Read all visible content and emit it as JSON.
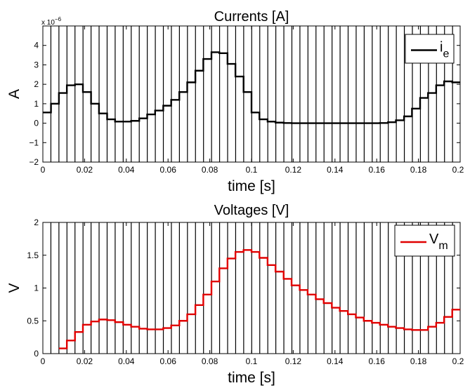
{
  "chart_data": [
    {
      "type": "line",
      "title": "Currents [A]",
      "xlabel": "time [s]",
      "ylabel": "A",
      "y_exponent_label": "x 10",
      "y_exponent_power": "−6",
      "xlim": [
        0,
        0.2
      ],
      "ylim": [
        -2,
        5
      ],
      "xticks": [
        0,
        0.02,
        0.04,
        0.06,
        0.08,
        0.1,
        0.12,
        0.14,
        0.16,
        0.18,
        0.2
      ],
      "xtick_labels": [
        "0",
        "0.02",
        "0.04",
        "0.06",
        "0.08",
        "0.1",
        "0.12",
        "0.14",
        "0.16",
        "0.18",
        "0.2"
      ],
      "yticks": [
        -2,
        -1,
        0,
        1,
        2,
        3,
        4
      ],
      "ytick_labels": [
        "−2",
        "−1",
        "0",
        "1",
        "2",
        "3",
        "4"
      ],
      "grid": false,
      "legend_position": "top-right",
      "step": true,
      "vertical_marker_spacing": 0.00385,
      "series": [
        {
          "name": "i",
          "name_subscript": "e",
          "color": "#000000",
          "x": [
            0,
            0.0039,
            0.0077,
            0.0115,
            0.0154,
            0.0192,
            0.0231,
            0.0269,
            0.0308,
            0.0346,
            0.0385,
            0.0423,
            0.0462,
            0.05,
            0.0538,
            0.0577,
            0.0615,
            0.0654,
            0.0692,
            0.0731,
            0.0769,
            0.0808,
            0.0846,
            0.0885,
            0.0923,
            0.0962,
            0.1,
            0.1038,
            0.1077,
            0.1115,
            0.1154,
            0.1192,
            0.1231,
            0.1269,
            0.1308,
            0.1346,
            0.1385,
            0.1423,
            0.1462,
            0.15,
            0.1538,
            0.1577,
            0.1615,
            0.1654,
            0.1692,
            0.1731,
            0.1769,
            0.1808,
            0.1846,
            0.1885,
            0.1923,
            0.1962
          ],
          "y": [
            0.55,
            1.0,
            1.55,
            1.95,
            2.0,
            1.6,
            1.0,
            0.5,
            0.2,
            0.08,
            0.08,
            0.12,
            0.25,
            0.45,
            0.65,
            0.9,
            1.2,
            1.6,
            2.1,
            2.7,
            3.3,
            3.65,
            3.6,
            3.05,
            2.4,
            1.6,
            0.55,
            0.2,
            0.08,
            0.03,
            0.01,
            0.0,
            0.0,
            0.0,
            0.0,
            0.0,
            0.0,
            0.0,
            0.0,
            0.0,
            0.0,
            0.0,
            0.01,
            0.05,
            0.15,
            0.35,
            0.75,
            1.3,
            1.55,
            1.95,
            2.15,
            2.1
          ]
        }
      ]
    },
    {
      "type": "line",
      "title": "Voltages [V]",
      "xlabel": "time [s]",
      "ylabel": "V",
      "xlim": [
        0,
        0.2
      ],
      "ylim": [
        0,
        2
      ],
      "xticks": [
        0,
        0.02,
        0.04,
        0.06,
        0.08,
        0.1,
        0.12,
        0.14,
        0.16,
        0.18,
        0.2
      ],
      "xtick_labels": [
        "0",
        "0.02",
        "0.04",
        "0.06",
        "0.08",
        "0.1",
        "0.12",
        "0.14",
        "0.16",
        "0.18",
        "0.2"
      ],
      "yticks": [
        0,
        0.5,
        1,
        1.5,
        2
      ],
      "ytick_labels": [
        "0",
        "0.5",
        "1",
        "1.5",
        "2"
      ],
      "grid": false,
      "legend_position": "top-right",
      "step": true,
      "vertical_marker_spacing": 0.00385,
      "series": [
        {
          "name": "V",
          "name_subscript": "m",
          "color": "#e00000",
          "x": [
            0.0077,
            0.0115,
            0.0154,
            0.0192,
            0.0231,
            0.0269,
            0.0308,
            0.0346,
            0.0385,
            0.0423,
            0.0462,
            0.05,
            0.0538,
            0.0577,
            0.0615,
            0.0654,
            0.0692,
            0.0731,
            0.0769,
            0.0808,
            0.0846,
            0.0885,
            0.0923,
            0.0962,
            0.1,
            0.1038,
            0.1077,
            0.1115,
            0.1154,
            0.1192,
            0.1231,
            0.1269,
            0.1308,
            0.1346,
            0.1385,
            0.1423,
            0.1462,
            0.15,
            0.1538,
            0.1577,
            0.1615,
            0.1654,
            0.1692,
            0.1731,
            0.1769,
            0.1808,
            0.1846,
            0.1885,
            0.1923,
            0.1962
          ],
          "y": [
            0.08,
            0.2,
            0.33,
            0.44,
            0.49,
            0.52,
            0.51,
            0.48,
            0.44,
            0.41,
            0.38,
            0.37,
            0.37,
            0.39,
            0.43,
            0.5,
            0.6,
            0.74,
            0.9,
            1.1,
            1.3,
            1.45,
            1.55,
            1.58,
            1.55,
            1.46,
            1.35,
            1.25,
            1.14,
            1.04,
            0.97,
            0.9,
            0.83,
            0.77,
            0.7,
            0.65,
            0.6,
            0.55,
            0.5,
            0.47,
            0.44,
            0.41,
            0.39,
            0.37,
            0.36,
            0.36,
            0.41,
            0.47,
            0.56,
            0.67
          ]
        }
      ]
    }
  ]
}
